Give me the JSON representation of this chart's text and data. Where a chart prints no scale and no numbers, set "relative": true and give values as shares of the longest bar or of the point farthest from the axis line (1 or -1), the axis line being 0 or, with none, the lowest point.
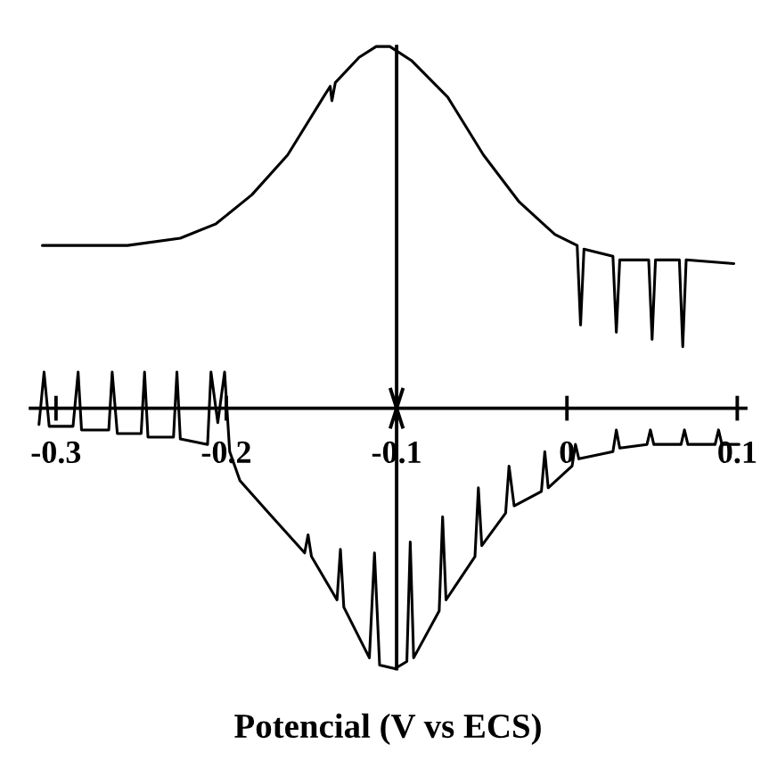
{
  "chart_data": {
    "type": "line",
    "relative": true,
    "xlabel": "Potencial (V vs ECS)",
    "xlim": [
      -0.315,
      0.105
    ],
    "xticks": [
      {
        "value": -0.3,
        "label": "-0.3"
      },
      {
        "value": -0.2,
        "label": "-0.2"
      },
      {
        "value": -0.1,
        "label": "-0.1"
      },
      {
        "value": 0,
        "label": "0"
      },
      {
        "value": 0.1,
        "label": "0.1"
      }
    ],
    "ref_lines": [
      {
        "axis": "x",
        "value": -0.1
      }
    ],
    "grid": false,
    "legend": false,
    "marker": "none",
    "line_style": "solid",
    "series": [
      {
        "color": "#000000",
        "x": [
          -0.308,
          -0.258,
          -0.227,
          -0.206,
          -0.185,
          -0.164,
          -0.143,
          -0.139,
          -0.138,
          -0.136,
          -0.122,
          -0.112,
          -0.104,
          -0.091,
          -0.07,
          -0.049,
          -0.028,
          -0.007,
          0.006,
          0.008,
          0.01,
          0.027,
          0.029,
          0.031,
          0.048,
          0.05,
          0.052,
          0.066,
          0.068,
          0.07,
          0.098
        ],
        "values": [
          0.45,
          0.45,
          0.47,
          0.51,
          0.59,
          0.7,
          0.86,
          0.89,
          0.85,
          0.9,
          0.97,
          1.0,
          1.0,
          0.96,
          0.86,
          0.7,
          0.57,
          0.48,
          0.45,
          0.23,
          0.44,
          0.42,
          0.21,
          0.41,
          0.41,
          0.19,
          0.41,
          0.41,
          0.17,
          0.41,
          0.4
        ]
      },
      {
        "color": "#000000",
        "x": [
          -0.31,
          -0.307,
          -0.304,
          -0.29,
          -0.287,
          -0.285,
          -0.269,
          -0.267,
          -0.264,
          -0.25,
          -0.248,
          -0.246,
          -0.231,
          -0.229,
          -0.227,
          -0.211,
          -0.209,
          -0.205,
          -0.201,
          -0.198,
          -0.192,
          -0.175,
          -0.154,
          -0.152,
          -0.15,
          -0.135,
          -0.133,
          -0.131,
          -0.116,
          -0.113,
          -0.11,
          -0.101,
          -0.094,
          -0.092,
          -0.09,
          -0.075,
          -0.073,
          -0.071,
          -0.054,
          -0.052,
          -0.05,
          -0.036,
          -0.034,
          -0.031,
          -0.015,
          -0.013,
          -0.011,
          0.003,
          0.005,
          0.007,
          0.027,
          0.029,
          0.031,
          0.047,
          0.049,
          0.051,
          0.067,
          0.069,
          0.071,
          0.087,
          0.089,
          0.091,
          0.101
        ],
        "values": [
          -0.045,
          0.1,
          -0.05,
          -0.05,
          0.1,
          -0.06,
          -0.06,
          0.1,
          -0.07,
          -0.07,
          0.1,
          -0.08,
          -0.08,
          0.1,
          -0.085,
          -0.1,
          0.1,
          -0.04,
          0.1,
          -0.12,
          -0.2,
          -0.29,
          -0.4,
          -0.35,
          -0.41,
          -0.53,
          -0.39,
          -0.55,
          -0.69,
          -0.4,
          -0.71,
          -0.72,
          -0.7,
          -0.37,
          -0.69,
          -0.56,
          -0.3,
          -0.53,
          -0.41,
          -0.22,
          -0.38,
          -0.29,
          -0.16,
          -0.27,
          -0.23,
          -0.12,
          -0.22,
          -0.16,
          -0.1,
          -0.14,
          -0.12,
          -0.06,
          -0.11,
          -0.1,
          -0.06,
          -0.1,
          -0.1,
          -0.06,
          -0.1,
          -0.1,
          -0.06,
          -0.1,
          -0.1
        ]
      }
    ]
  }
}
